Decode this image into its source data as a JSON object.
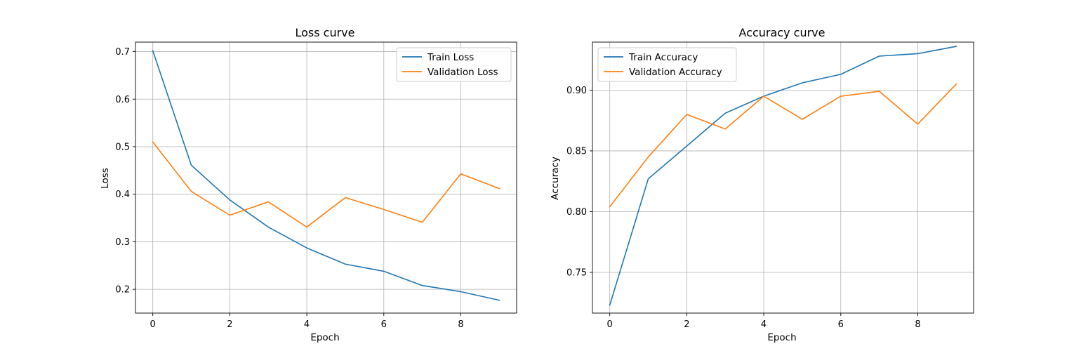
{
  "chart_data": [
    {
      "type": "line",
      "title": "Loss curve",
      "xlabel": "Epoch",
      "ylabel": "Loss",
      "x": [
        0,
        1,
        2,
        3,
        4,
        5,
        6,
        7,
        8,
        9
      ],
      "xlim": [
        -0.45,
        9.45
      ],
      "ylim": [
        0.15,
        0.72
      ],
      "xticks": [
        0,
        2,
        4,
        6,
        8
      ],
      "yticks": [
        0.2,
        0.3,
        0.4,
        0.5,
        0.6,
        0.7
      ],
      "ytick_labels": [
        "0.2",
        "0.3",
        "0.4",
        "0.5",
        "0.6",
        "0.7"
      ],
      "grid": true,
      "legend": "top-right",
      "series": [
        {
          "name": "Train Loss",
          "color": "#1f77b4",
          "values": [
            0.702,
            0.461,
            0.388,
            0.331,
            0.287,
            0.253,
            0.238,
            0.208,
            0.195,
            0.177
          ]
        },
        {
          "name": "Validation Loss",
          "color": "#ff7f0e",
          "values": [
            0.51,
            0.406,
            0.356,
            0.384,
            0.331,
            0.393,
            0.368,
            0.341,
            0.443,
            0.412
          ]
        }
      ]
    },
    {
      "type": "line",
      "title": "Accuracy curve",
      "xlabel": "Epoch",
      "ylabel": "Accuracy",
      "x": [
        0,
        1,
        2,
        3,
        4,
        5,
        6,
        7,
        8,
        9
      ],
      "xlim": [
        -0.45,
        9.45
      ],
      "ylim": [
        0.7165,
        0.9395
      ],
      "xticks": [
        0,
        2,
        4,
        6,
        8
      ],
      "yticks": [
        0.75,
        0.8,
        0.85,
        0.9
      ],
      "ytick_labels": [
        "0.75",
        "0.80",
        "0.85",
        "0.90"
      ],
      "grid": true,
      "legend": "top-left",
      "series": [
        {
          "name": "Train Accuracy",
          "color": "#1f77b4",
          "values": [
            0.723,
            0.827,
            0.854,
            0.881,
            0.895,
            0.906,
            0.913,
            0.928,
            0.93,
            0.936
          ]
        },
        {
          "name": "Validation Accuracy",
          "color": "#ff7f0e",
          "values": [
            0.804,
            0.845,
            0.88,
            0.868,
            0.895,
            0.876,
            0.895,
            0.899,
            0.872,
            0.905
          ]
        }
      ]
    }
  ]
}
